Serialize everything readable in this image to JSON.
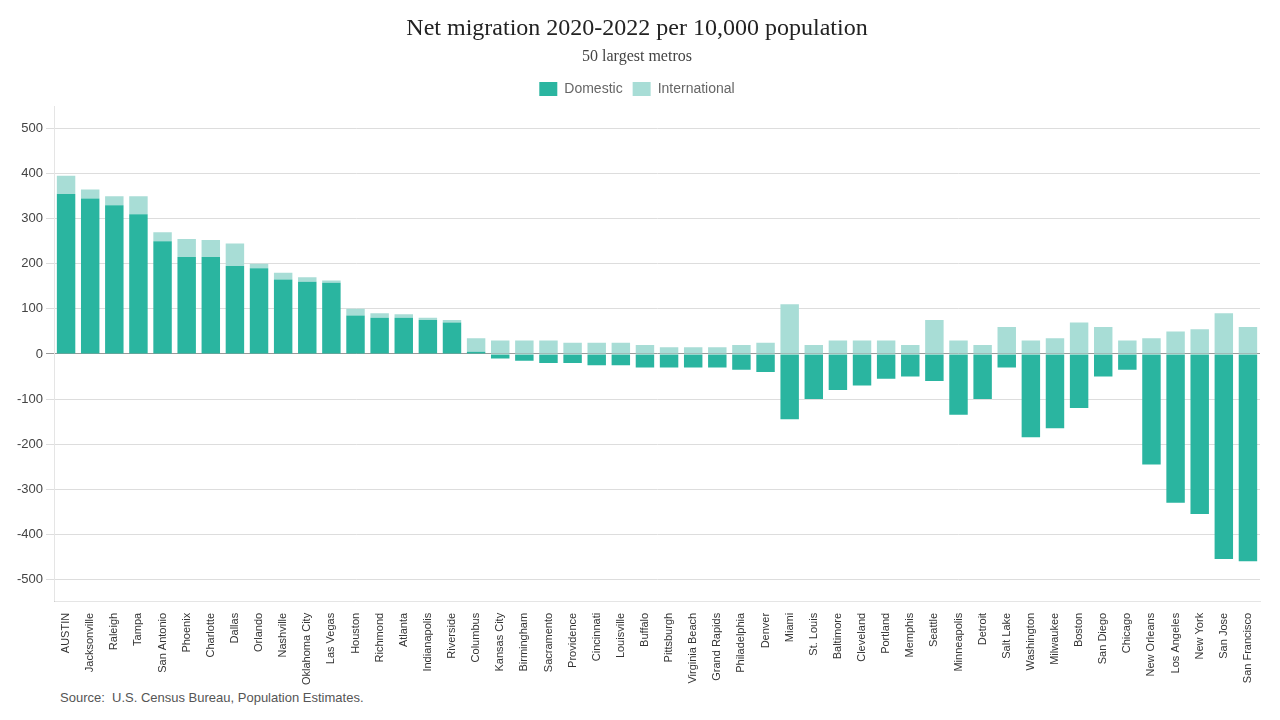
{
  "chart_data": {
    "type": "bar",
    "title": "Net migration 2020-2022 per 10,000 population",
    "subtitle": "50 largest metros",
    "annotations": [
      "Source:  U.S. Census Bureau, Population Estimates."
    ],
    "categories": [
      "AUSTIN",
      "Jacksonville",
      "Raleigh",
      "Tampa",
      "San Antonio",
      "Phoenix",
      "Charlotte",
      "Dallas",
      "Orlando",
      "Nashville",
      "Oklahoma City",
      "Las Vegas",
      "Houston",
      "Richmond",
      "Atlanta",
      "Indianapolis",
      "Riverside",
      "Columbus",
      "Kansas City",
      "Birmingham",
      "Sacramento",
      "Providence",
      "Cincinnati",
      "Louisville",
      "Buffalo",
      "Pittsburgh",
      "Virginia Beach",
      "Grand Rapids",
      "Philadelphia",
      "Denver",
      "Miami",
      "St. Louis",
      "Baltimore",
      "Cleveland",
      "Portland",
      "Memphis",
      "Seattle",
      "Minneapolis",
      "Detroit",
      "Salt Lake",
      "Washington",
      "Milwaukee",
      "Boston",
      "San Diego",
      "Chicago",
      "New Orleans",
      "Los Angeles",
      "New York",
      "San Jose",
      "San Francisco"
    ],
    "series": [
      {
        "name": "Domestic",
        "color": "#2ab5a0",
        "values": [
          355,
          345,
          330,
          310,
          250,
          215,
          215,
          195,
          190,
          165,
          160,
          158,
          85,
          80,
          80,
          75,
          70,
          5,
          -10,
          -15,
          -20,
          -20,
          -25,
          -25,
          -30,
          -30,
          -30,
          -30,
          -35,
          -40,
          -145,
          -100,
          -80,
          -70,
          -55,
          -50,
          -60,
          -135,
          -100,
          -30,
          -185,
          -165,
          -120,
          -50,
          -35,
          -245,
          -330,
          -355,
          -455,
          -460
        ]
      },
      {
        "name": "International",
        "color": "#a8ddd6",
        "values": [
          40,
          20,
          20,
          40,
          20,
          40,
          38,
          50,
          10,
          15,
          10,
          5,
          15,
          10,
          8,
          5,
          5,
          30,
          30,
          30,
          30,
          25,
          25,
          25,
          20,
          15,
          15,
          15,
          20,
          25,
          110,
          20,
          30,
          30,
          30,
          20,
          75,
          30,
          20,
          60,
          30,
          35,
          70,
          60,
          30,
          35,
          50,
          55,
          90,
          60
        ]
      }
    ],
    "stacked": true,
    "ylim": [
      -550,
      550
    ],
    "yticks": [
      -500,
      -400,
      -300,
      -200,
      -100,
      0,
      100,
      200,
      300,
      400,
      500
    ],
    "grid": true,
    "legend": "top"
  }
}
